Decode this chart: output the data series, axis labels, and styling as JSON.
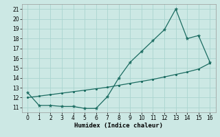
{
  "xlabel": "Humidex (Indice chaleur)",
  "ylabel": "",
  "bg_color": "#cce8e4",
  "grid_color": "#aad4cf",
  "line_color": "#1a6b60",
  "xlim": [
    -0.5,
    16.5
  ],
  "ylim": [
    10.5,
    21.5
  ],
  "xticks": [
    0,
    1,
    2,
    3,
    4,
    5,
    6,
    7,
    8,
    9,
    10,
    11,
    12,
    13,
    14,
    15,
    16
  ],
  "yticks": [
    11,
    12,
    13,
    14,
    15,
    16,
    17,
    18,
    19,
    20,
    21
  ],
  "line1_x": [
    0,
    1,
    2,
    3,
    4,
    5,
    6,
    7,
    8,
    9,
    10,
    11,
    12,
    13,
    14,
    15,
    16
  ],
  "line1_y": [
    12.5,
    11.2,
    11.2,
    11.1,
    11.1,
    10.9,
    10.9,
    12.1,
    14.0,
    15.6,
    16.7,
    17.8,
    18.9,
    21.0,
    18.0,
    18.3,
    15.6
  ],
  "line2_x": [
    0,
    1,
    2,
    3,
    4,
    5,
    6,
    7,
    8,
    9,
    10,
    11,
    12,
    13,
    14,
    15,
    16
  ],
  "line2_y": [
    12.0,
    12.15,
    12.3,
    12.45,
    12.6,
    12.75,
    12.9,
    13.05,
    13.25,
    13.45,
    13.65,
    13.85,
    14.1,
    14.35,
    14.6,
    14.9,
    15.5
  ],
  "tick_fontsize": 5.5,
  "xlabel_fontsize": 6.5
}
